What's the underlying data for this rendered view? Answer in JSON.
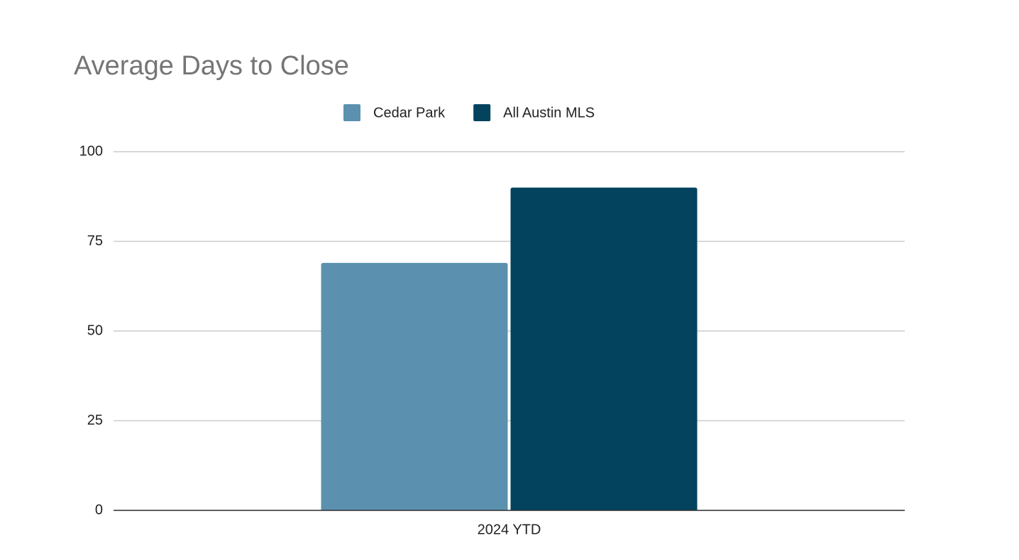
{
  "chart_data": {
    "type": "bar",
    "title": "Average Days to Close",
    "categories": [
      "2024 YTD"
    ],
    "series": [
      {
        "name": "Cedar Park",
        "color": "#5b91ae",
        "values": [
          69
        ]
      },
      {
        "name": "All Austin MLS",
        "color": "#03435e",
        "values": [
          90
        ]
      }
    ],
    "ylim": [
      0,
      100
    ],
    "yticks": [
      0,
      25,
      50,
      75,
      100
    ],
    "grid": true,
    "legend": "top"
  }
}
